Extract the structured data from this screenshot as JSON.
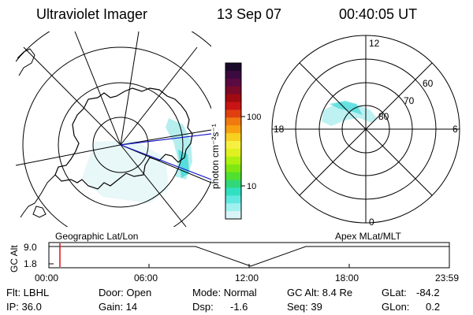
{
  "header": {
    "title": "Ultraviolet Imager",
    "date": "13 Sep 07",
    "time": "00:40:05 UT"
  },
  "colorbar": {
    "unit_label": "photon cm⁻²s⁻¹",
    "tick_labels": [
      "100",
      "10"
    ],
    "colors": [
      "#1a0a2a",
      "#3b0a3e",
      "#5a0a40",
      "#7a0a2a",
      "#a00a10",
      "#c81414",
      "#e04010",
      "#f07a10",
      "#f8a010",
      "#f8d020",
      "#f8f040",
      "#e0f020",
      "#b0f010",
      "#80e810",
      "#50e030",
      "#30d878",
      "#30e0c0",
      "#60e8e0",
      "#a0f0f0",
      "#d8f4f6"
    ]
  },
  "left_map": {
    "label": "Geographic Lat/Lon"
  },
  "right_map": {
    "label": "Apex  MLat/MLT",
    "mlt_labels": {
      "top": "12",
      "bottom": "0",
      "left": "18",
      "right": "6"
    },
    "lat_labels": [
      "60",
      "70",
      "80"
    ]
  },
  "altitude_plot": {
    "ylabel": "GC Alt",
    "y_ticks": [
      "9.0",
      "1.8"
    ],
    "x_ticks": [
      "00:00",
      "06:00",
      "12:00",
      "18:00",
      "23:59"
    ],
    "marker_time": "00:40"
  },
  "status": {
    "flt": "Flt: LBHL",
    "door": "Door: Open",
    "mode": "Mode: Normal",
    "gc_alt": "GC Alt: 8.4 Re",
    "glat_label": "GLat:",
    "glat_value": "-84.2",
    "ip": "IP: 36.0",
    "gain": "Gain: 14",
    "dsp_label": "Dsp:",
    "dsp_value": "-1.6",
    "seq": "Seq: 39",
    "glon_label": "GLon:",
    "glon_value": "0.2"
  }
}
